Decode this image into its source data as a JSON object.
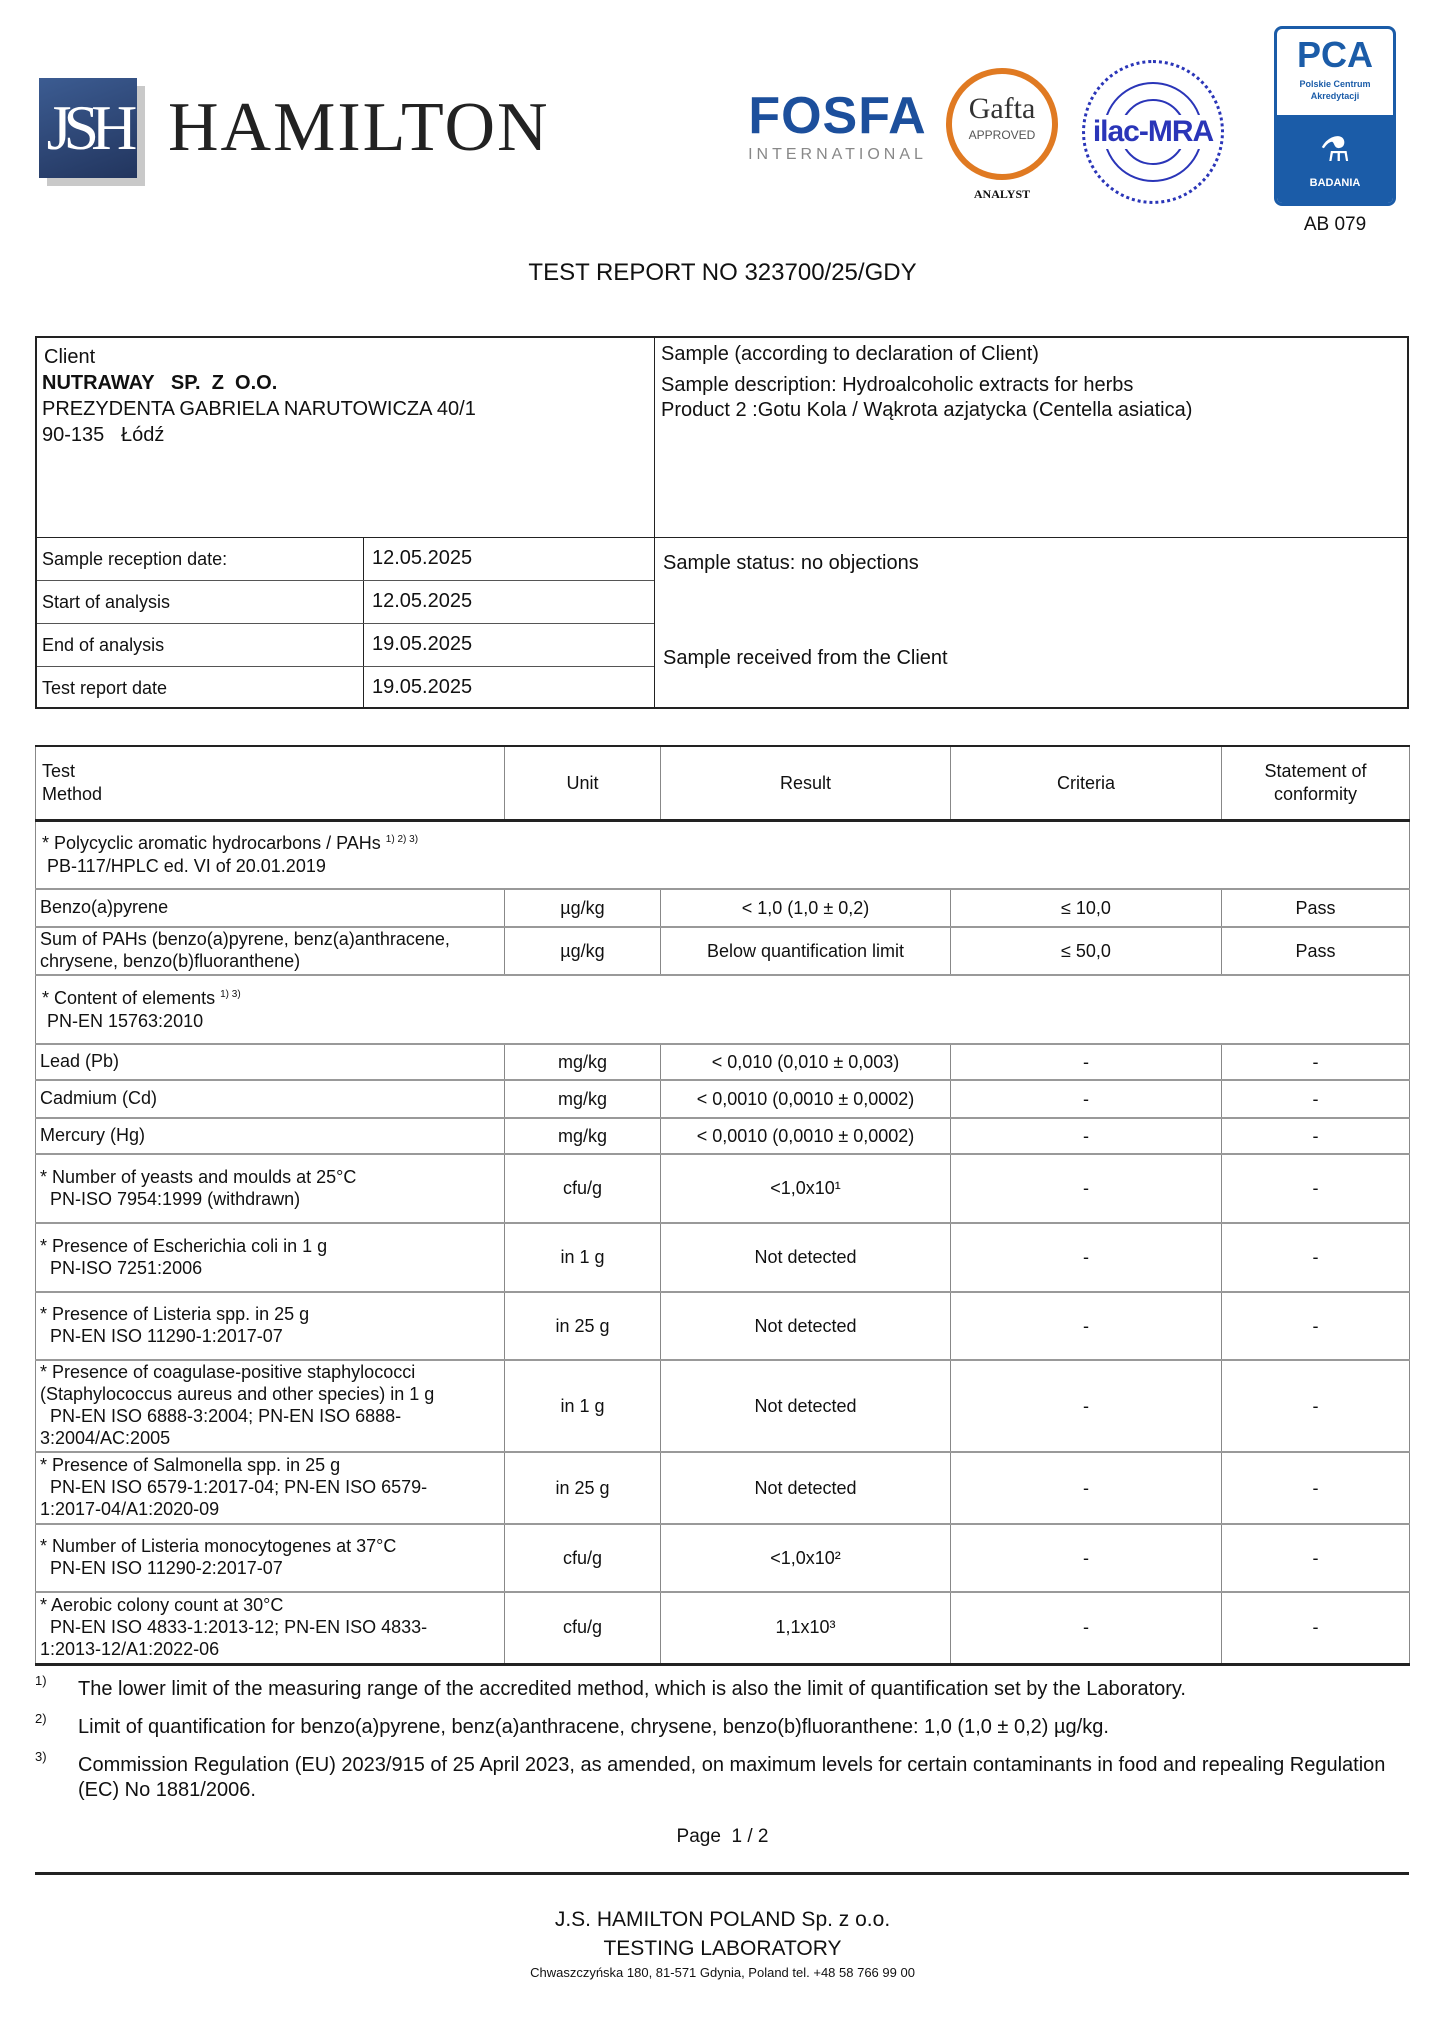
{
  "header": {
    "logo_monogram": "JSH",
    "company_name": "HAMILTON",
    "fosfa": {
      "name": "FOSFA",
      "sub": "INTERNATIONAL"
    },
    "gafta": {
      "name": "Gafta",
      "approved": "APPROVED",
      "analyst": "ANALYST"
    },
    "ilac": "ilac-MRA",
    "pca": {
      "name": "PCA",
      "sub1": "Polskie Centrum",
      "sub2": "Akredytacji",
      "badania": "BADANIA",
      "accreditation": "AB 079"
    },
    "colors": {
      "brand_navy": "#2b4476",
      "fosfa_blue": "#1c4f9c",
      "gafta_orange": "#e07a22",
      "ilac_blue": "#2a35b8",
      "pca_blue": "#1b5ca8"
    }
  },
  "title": "TEST REPORT NO 323700/25/GDY",
  "client": {
    "label": "Client",
    "name": "NUTRAWAY   SP.  Z  O.O.",
    "address1": "PREZYDENTA GABRIELA NARUTOWICZA  40/1",
    "address2": "90-135   Łódź"
  },
  "sample": {
    "heading": "Sample (according to declaration of Client)",
    "description": "Sample description: Hydroalcoholic extracts for herbs",
    "product": "Product 2 :Gotu Kola / Wąkrota azjatycka (Centella asiatica)",
    "status": "Sample status: no objections",
    "received": "Sample received from the Client"
  },
  "dates": [
    {
      "label": "Sample reception date:",
      "value": "12.05.2025"
    },
    {
      "label": "Start of analysis",
      "value": "12.05.2025"
    },
    {
      "label": "End of analysis",
      "value": "19.05.2025"
    },
    {
      "label": "Test report date",
      "value": "19.05.2025"
    }
  ],
  "table": {
    "headers": {
      "test": "Test",
      "method": "Method",
      "unit": "Unit",
      "result": "Result",
      "criteria": "Criteria",
      "conformity1": "Statement of",
      "conformity2": "conformity"
    },
    "rows": [
      {
        "type": "group",
        "title": "* Polycyclic aromatic hydrocarbons / PAHs",
        "sup": "1) 2) 3)",
        "method": " PB-117/HPLC ed. VI of 20.01.2019"
      },
      {
        "type": "data",
        "test": [
          "Benzo(a)pyrene"
        ],
        "unit": "µg/kg",
        "result": "< 1,0 (1,0 ± 0,2)",
        "criteria": "≤ 10,0",
        "conformity": "Pass"
      },
      {
        "type": "data",
        "test": [
          "Sum of PAHs (benzo(a)pyrene, benz(a)anthracene,",
          "chrysene, benzo(b)fluoranthene)"
        ],
        "unit": "µg/kg",
        "result": "Below quantification limit",
        "criteria": "≤ 50,0",
        "conformity": "Pass"
      },
      {
        "type": "group",
        "title": "* Content of elements",
        "sup": "1) 3)",
        "method": " PN-EN 15763:2010"
      },
      {
        "type": "data",
        "test": [
          "Lead (Pb)"
        ],
        "unit": "mg/kg",
        "result": "< 0,010 (0,010 ± 0,003)",
        "criteria": "-",
        "conformity": "-"
      },
      {
        "type": "data",
        "test": [
          "Cadmium (Cd)"
        ],
        "unit": "mg/kg",
        "result": "< 0,0010 (0,0010 ± 0,0002)",
        "criteria": "-",
        "conformity": "-"
      },
      {
        "type": "data",
        "test": [
          "Mercury (Hg)"
        ],
        "unit": "mg/kg",
        "result": "< 0,0010 (0,0010 ± 0,0002)",
        "criteria": "-",
        "conformity": "-"
      },
      {
        "type": "data",
        "test": [
          "* Number of yeasts and moulds at 25°C",
          "  PN-ISO 7954:1999 (withdrawn)"
        ],
        "unit": "cfu/g",
        "result": "<1,0x10¹",
        "criteria": "-",
        "conformity": "-"
      },
      {
        "type": "data",
        "test": [
          "* Presence of Escherichia coli in 1 g",
          "  PN-ISO 7251:2006"
        ],
        "unit": "in 1 g",
        "result": "Not detected",
        "criteria": "-",
        "conformity": "-"
      },
      {
        "type": "data",
        "test": [
          "* Presence of Listeria spp. in 25 g",
          "  PN-EN ISO 11290-1:2017-07"
        ],
        "unit": "in 25 g",
        "result": "Not detected",
        "criteria": "-",
        "conformity": "-"
      },
      {
        "type": "data",
        "test": [
          "* Presence of coagulase-positive staphylococci",
          "(Staphylococcus aureus and other species) in 1 g",
          "  PN-EN ISO 6888-3:2004; PN-EN ISO 6888-",
          "3:2004/AC:2005"
        ],
        "unit": "in 1 g",
        "result": "Not detected",
        "criteria": "-",
        "conformity": "-"
      },
      {
        "type": "data",
        "test": [
          "* Presence of Salmonella spp. in 25 g",
          "  PN-EN ISO 6579-1:2017-04; PN-EN ISO 6579-",
          "1:2017-04/A1:2020-09"
        ],
        "unit": "in 25 g",
        "result": "Not detected",
        "criteria": "-",
        "conformity": "-"
      },
      {
        "type": "data",
        "test": [
          "* Number of Listeria monocytogenes at 37°C",
          "  PN-EN ISO 11290-2:2017-07"
        ],
        "unit": "cfu/g",
        "result": "<1,0x10²",
        "criteria": "-",
        "conformity": "-"
      },
      {
        "type": "data",
        "test": [
          "* Aerobic colony count at 30°C",
          "  PN-EN ISO 4833-1:2013-12; PN-EN ISO 4833-",
          "1:2013-12/A1:2022-06"
        ],
        "unit": "cfu/g",
        "result": "1,1x10³",
        "criteria": "-",
        "conformity": "-"
      }
    ]
  },
  "footnotes": [
    {
      "n": "1)",
      "text": "The lower limit of the measuring range of the accredited method, which is also the limit of quantification set by the Laboratory."
    },
    {
      "n": "2)",
      "text": "Limit of quantification for benzo(a)pyrene, benz(a)anthracene, chrysene, benzo(b)fluoranthene: 1,0 (1,0 ± 0,2) µg/kg."
    },
    {
      "n": "3)",
      "text": "Commission Regulation (EU) 2023/915 of 25 April 2023, as amended, on maximum levels for certain contaminants in food and repealing Regulation (EC) No 1881/2006."
    }
  ],
  "page": "Page  1 / 2",
  "footer": {
    "company": "J.S. HAMILTON POLAND Sp. z o.o.",
    "lab": "TESTING LABORATORY",
    "address": "Chwaszczyńska 180, 81-571 Gdynia, Poland tel. +48 58 766 99 00"
  }
}
